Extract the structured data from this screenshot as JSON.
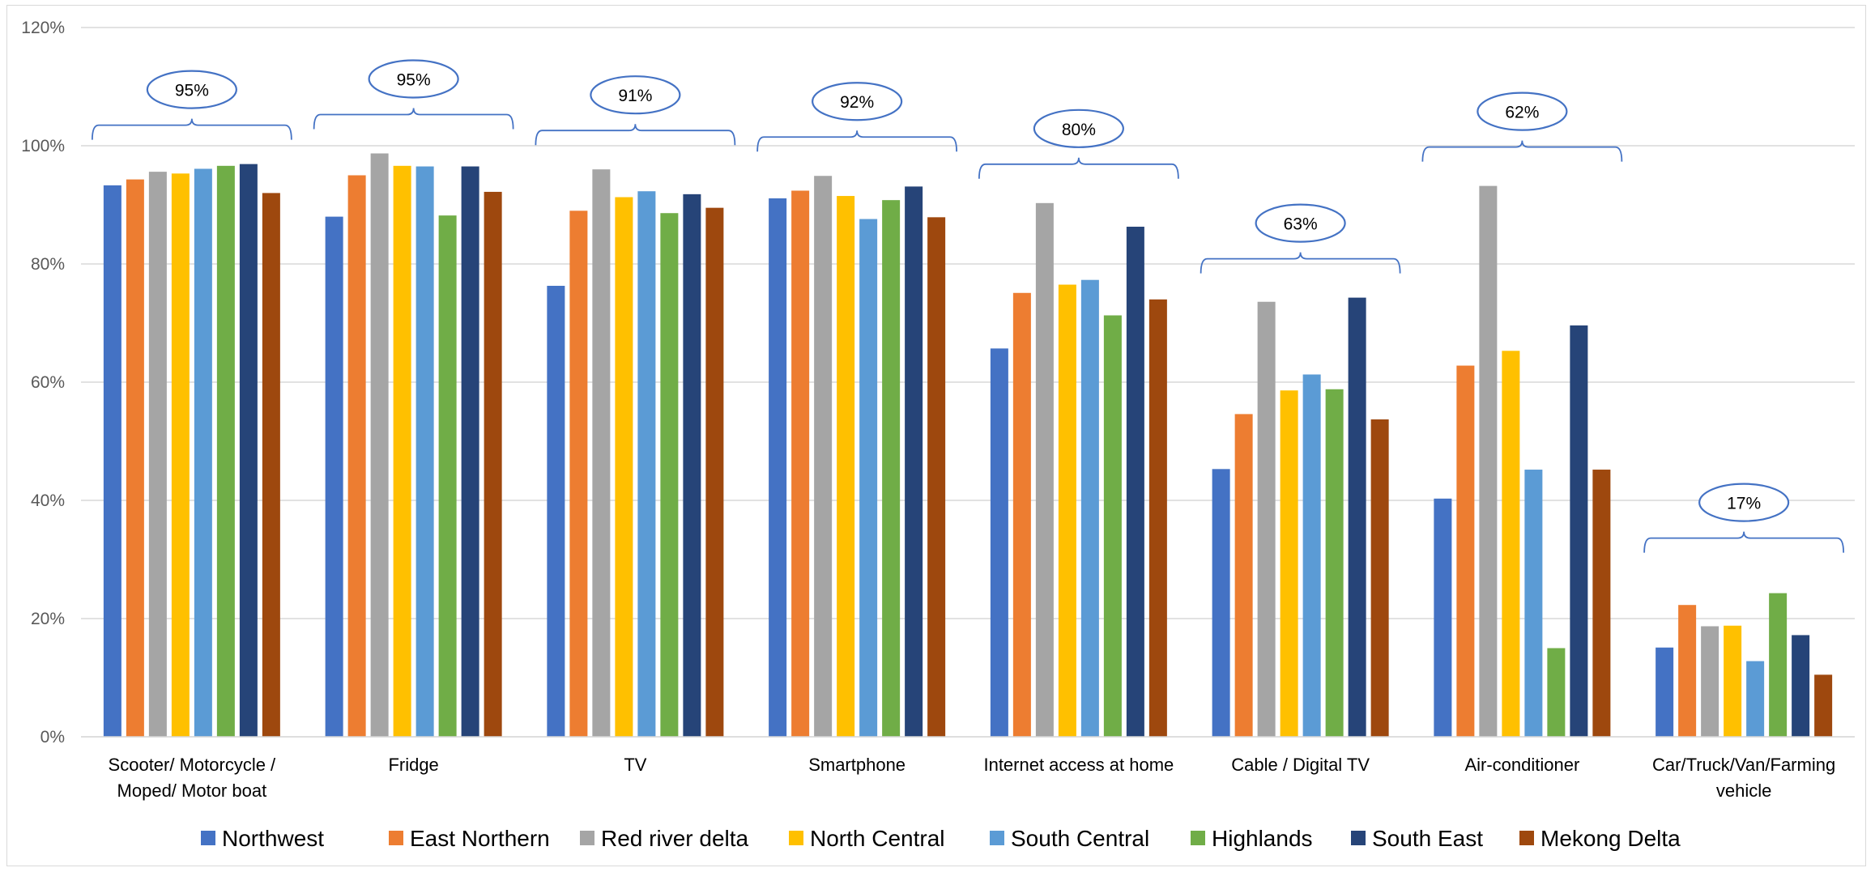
{
  "chart_data": {
    "type": "bar",
    "title": "",
    "xlabel": "",
    "ylabel": "",
    "ylim": [
      0,
      1.2
    ],
    "y_ticks": [
      "0%",
      "20%",
      "40%",
      "60%",
      "80%",
      "100%",
      "120%"
    ],
    "grid": true,
    "legend_position": "bottom",
    "categories": [
      [
        "Scooter/ Motorcycle /",
        "Moped/ Motor boat"
      ],
      [
        "Fridge"
      ],
      [
        "TV"
      ],
      [
        "Smartphone"
      ],
      [
        "Internet access at home"
      ],
      [
        "Cable / Digital TV"
      ],
      [
        "Air-conditioner"
      ],
      [
        "Car/Truck/Van/Farming",
        "vehicle"
      ]
    ],
    "series": [
      {
        "name": "Northwest",
        "color": "#4472C4",
        "values": [
          0.933,
          0.88,
          0.763,
          0.911,
          0.657,
          0.453,
          0.403,
          0.151
        ]
      },
      {
        "name": "East Northern",
        "color": "#ED7D31",
        "values": [
          0.943,
          0.95,
          0.89,
          0.924,
          0.751,
          0.546,
          0.628,
          0.223
        ]
      },
      {
        "name": "Red river delta",
        "color": "#A5A5A5",
        "values": [
          0.956,
          0.987,
          0.96,
          0.949,
          0.903,
          0.736,
          0.932,
          0.187
        ]
      },
      {
        "name": "North Central",
        "color": "#FFC000",
        "values": [
          0.953,
          0.966,
          0.913,
          0.915,
          0.765,
          0.586,
          0.653,
          0.188
        ]
      },
      {
        "name": "South Central",
        "color": "#5B9BD5",
        "values": [
          0.961,
          0.965,
          0.923,
          0.876,
          0.773,
          0.613,
          0.452,
          0.128
        ]
      },
      {
        "name": "Highlands",
        "color": "#70AD47",
        "values": [
          0.966,
          0.882,
          0.886,
          0.908,
          0.713,
          0.588,
          0.15,
          0.243
        ]
      },
      {
        "name": "South East",
        "color": "#264478",
        "values": [
          0.969,
          0.965,
          0.918,
          0.931,
          0.863,
          0.743,
          0.696,
          0.172
        ]
      },
      {
        "name": "Mekong Delta",
        "color": "#9E480E",
        "values": [
          0.92,
          0.922,
          0.895,
          0.879,
          0.74,
          0.537,
          0.452,
          0.105
        ]
      }
    ],
    "annotations": [
      {
        "label": "95%",
        "value": 0.95
      },
      {
        "label": "95%",
        "value": 0.95
      },
      {
        "label": "91%",
        "value": 0.91
      },
      {
        "label": "92%",
        "value": 0.92
      },
      {
        "label": "80%",
        "value": 0.8
      },
      {
        "label": "63%",
        "value": 0.63
      },
      {
        "label": "62%",
        "value": 0.62
      },
      {
        "label": "17%",
        "value": 0.17
      }
    ],
    "annotation_color": "#4472C4",
    "gridline_color": "#d9d9d9"
  }
}
